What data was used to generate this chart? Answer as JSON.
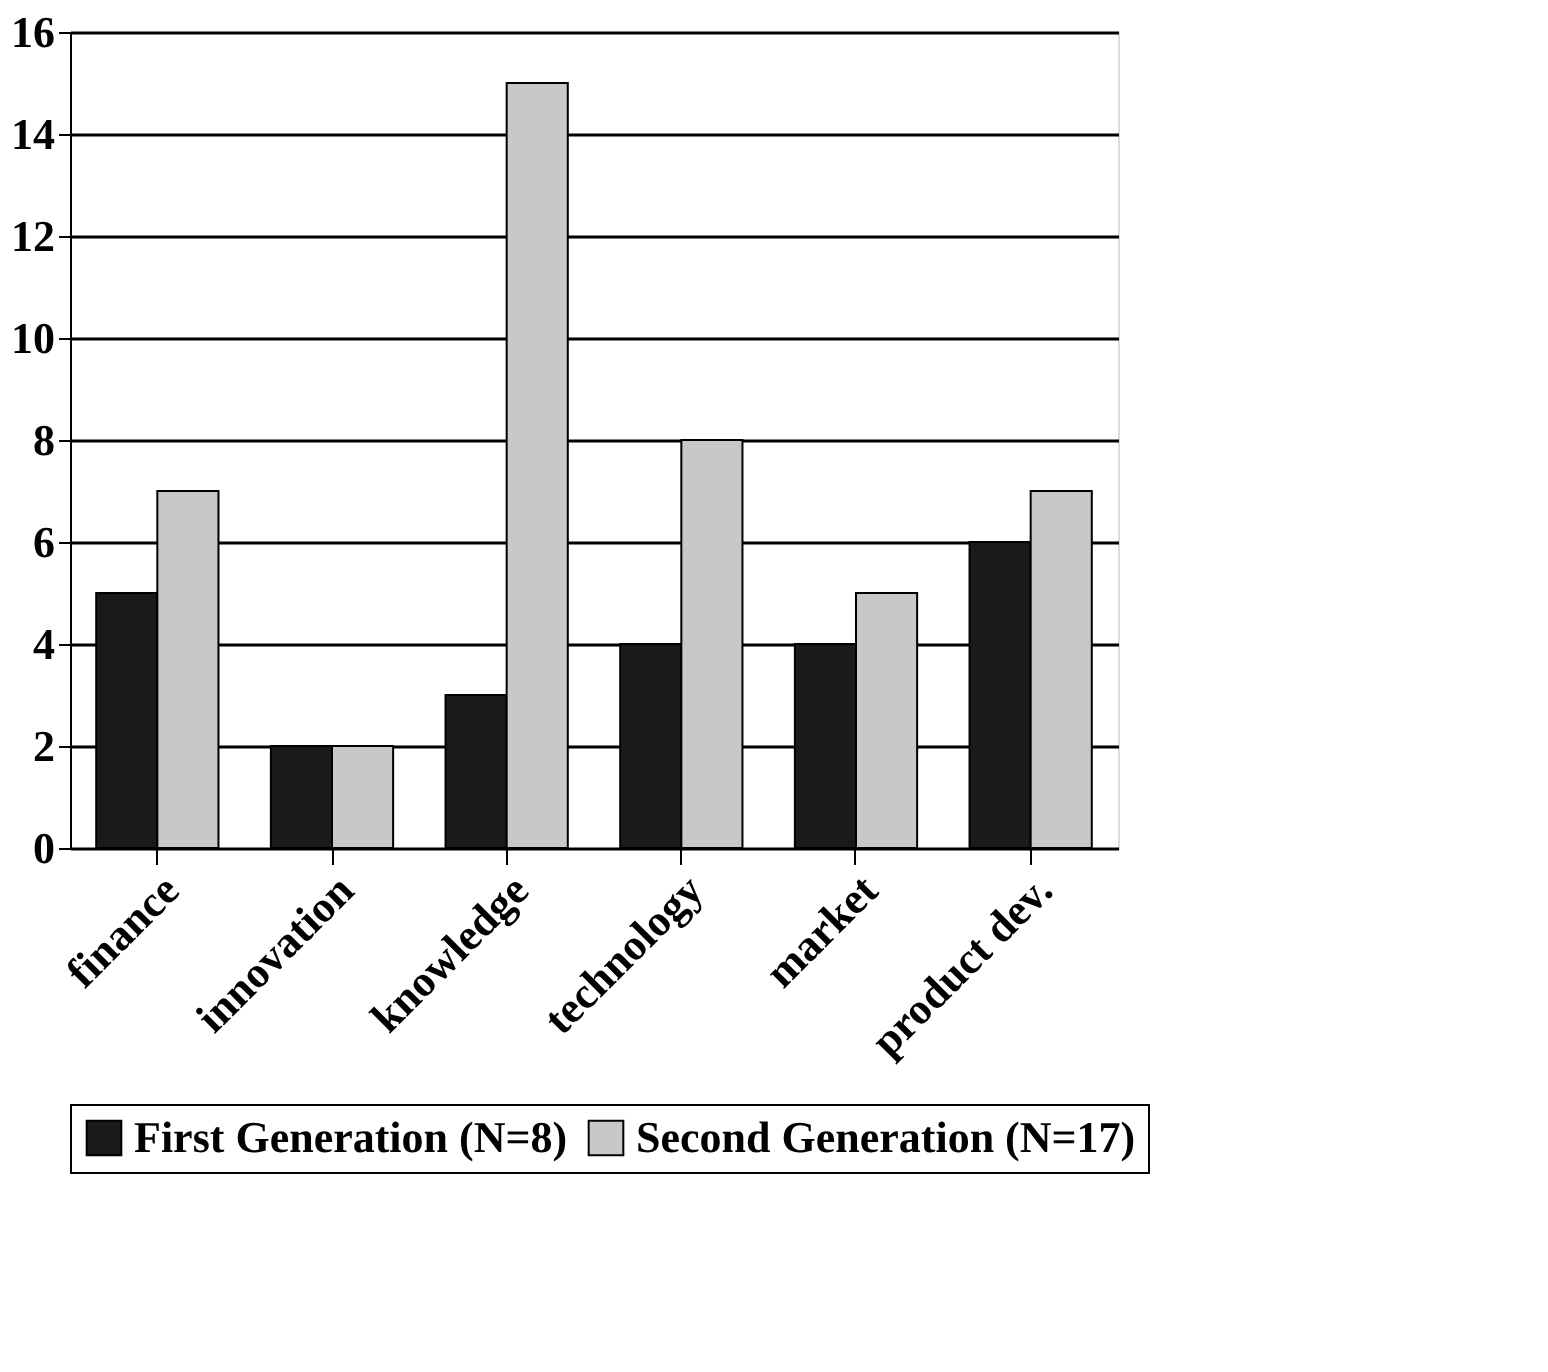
{
  "chart_data": {
    "type": "bar",
    "categories": [
      "finance",
      "innovation",
      "knowledge",
      "technology",
      "market",
      "product dev."
    ],
    "series": [
      {
        "name": "First Generation (N=8)",
        "color": "#1a1a1a",
        "values": [
          5,
          2,
          3,
          4,
          4,
          6
        ]
      },
      {
        "name": "Second Generation (N=17)",
        "color": "#c8c8c8",
        "values": [
          7,
          2,
          15,
          8,
          5,
          7
        ]
      }
    ],
    "ylim": [
      0,
      16
    ],
    "yticks": [
      0,
      2,
      4,
      6,
      8,
      10,
      12,
      14,
      16
    ],
    "grid": "y",
    "legend": "bottom"
  }
}
